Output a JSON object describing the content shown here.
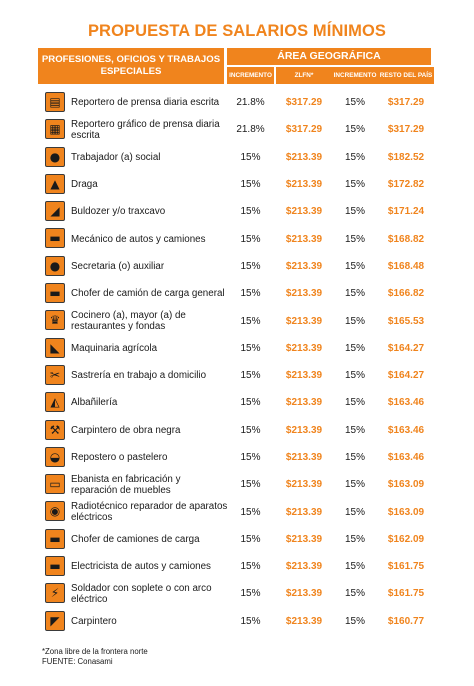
{
  "title": "PROPUESTA DE SALARIOS MÍNIMOS",
  "header": {
    "professions": "PROFESIONES, OFICIOS Y TRABAJOS ESPECIALES",
    "area": "ÁREA GEOGRÁFICA",
    "sub": [
      "INCREMENTO",
      "ZLFN*",
      "INCREMENTO",
      "RESTO DEL PAÍS"
    ]
  },
  "colors": {
    "accent": "#f0841d",
    "text": "#1a1a1a"
  },
  "rows": [
    {
      "icon": "printer-icon",
      "glyph": "▤",
      "name": "Reportero de prensa diaria escrita",
      "inc1": "21.8%",
      "zlfn": "$317.29",
      "inc2": "15%",
      "resto": "$317.29"
    },
    {
      "icon": "photo-icon",
      "glyph": "▦",
      "name": "Reportero gráfico de prensa diaria escrita",
      "inc1": "21.8%",
      "zlfn": "$317.29",
      "inc2": "15%",
      "resto": "$317.29"
    },
    {
      "icon": "person-icon",
      "glyph": "●",
      "name": "Trabajador (a) social",
      "inc1": "15%",
      "zlfn": "$213.39",
      "inc2": "15%",
      "resto": "$182.52"
    },
    {
      "icon": "dredge-icon",
      "glyph": "▲",
      "name": "Draga",
      "inc1": "15%",
      "zlfn": "$213.39",
      "inc2": "15%",
      "resto": "$172.82"
    },
    {
      "icon": "bulldozer-icon",
      "glyph": "◢",
      "name": "Buldozer y/o traxcavo",
      "inc1": "15%",
      "zlfn": "$213.39",
      "inc2": "15%",
      "resto": "$171.24"
    },
    {
      "icon": "car-icon",
      "glyph": "▬",
      "name": "Mecánico de autos y camiones",
      "inc1": "15%",
      "zlfn": "$213.39",
      "inc2": "15%",
      "resto": "$168.82"
    },
    {
      "icon": "secretary-icon",
      "glyph": "●",
      "name": "Secretaria (o) auxiliar",
      "inc1": "15%",
      "zlfn": "$213.39",
      "inc2": "15%",
      "resto": "$168.48"
    },
    {
      "icon": "truck-icon",
      "glyph": "▬",
      "name": "Chofer de camión de carga general",
      "inc1": "15%",
      "zlfn": "$213.39",
      "inc2": "15%",
      "resto": "$166.82"
    },
    {
      "icon": "chef-icon",
      "glyph": "♛",
      "name": "Cocinero (a), mayor (a) de restaurantes y fondas",
      "inc1": "15%",
      "zlfn": "$213.39",
      "inc2": "15%",
      "resto": "$165.53"
    },
    {
      "icon": "tractor-icon",
      "glyph": "◣",
      "name": "Maquinaria agrícola",
      "inc1": "15%",
      "zlfn": "$213.39",
      "inc2": "15%",
      "resto": "$164.27"
    },
    {
      "icon": "sewing-icon",
      "glyph": "✂",
      "name": "Sastrería en trabajo a domicilio",
      "inc1": "15%",
      "zlfn": "$213.39",
      "inc2": "15%",
      "resto": "$164.27"
    },
    {
      "icon": "mason-icon",
      "glyph": "◭",
      "name": "Albañilería",
      "inc1": "15%",
      "zlfn": "$213.39",
      "inc2": "15%",
      "resto": "$163.46"
    },
    {
      "icon": "hammer-icon",
      "glyph": "⚒",
      "name": "Carpintero de obra negra",
      "inc1": "15%",
      "zlfn": "$213.39",
      "inc2": "15%",
      "resto": "$163.46"
    },
    {
      "icon": "cake-icon",
      "glyph": "◒",
      "name": "Repostero o pastelero",
      "inc1": "15%",
      "zlfn": "$213.39",
      "inc2": "15%",
      "resto": "$163.46"
    },
    {
      "icon": "cabinet-icon",
      "glyph": "▭",
      "name": "Ebanista en fabricación y reparación de muebles",
      "inc1": "15%",
      "zlfn": "$213.39",
      "inc2": "15%",
      "resto": "$163.09"
    },
    {
      "icon": "radio-icon",
      "glyph": "◉",
      "name": "Radiotécnico reparador de aparatos eléctricos",
      "inc1": "15%",
      "zlfn": "$213.39",
      "inc2": "15%",
      "resto": "$163.09"
    },
    {
      "icon": "cargo-truck-icon",
      "glyph": "▬",
      "name": "Chofer de camiones de carga",
      "inc1": "15%",
      "zlfn": "$213.39",
      "inc2": "15%",
      "resto": "$162.09"
    },
    {
      "icon": "auto-electric-icon",
      "glyph": "▬",
      "name": "Electricista de autos y camiones",
      "inc1": "15%",
      "zlfn": "$213.39",
      "inc2": "15%",
      "resto": "$161.75"
    },
    {
      "icon": "welder-icon",
      "glyph": "⚡",
      "name": "Soldador con soplete o con arco eléctrico",
      "inc1": "15%",
      "zlfn": "$213.39",
      "inc2": "15%",
      "resto": "$161.75"
    },
    {
      "icon": "saw-icon",
      "glyph": "◤",
      "name": "Carpintero",
      "inc1": "15%",
      "zlfn": "$213.39",
      "inc2": "15%",
      "resto": "$160.77"
    }
  ],
  "footnote": "*Zona libre de la frontera norte",
  "source": "FUENTE: Conasami"
}
